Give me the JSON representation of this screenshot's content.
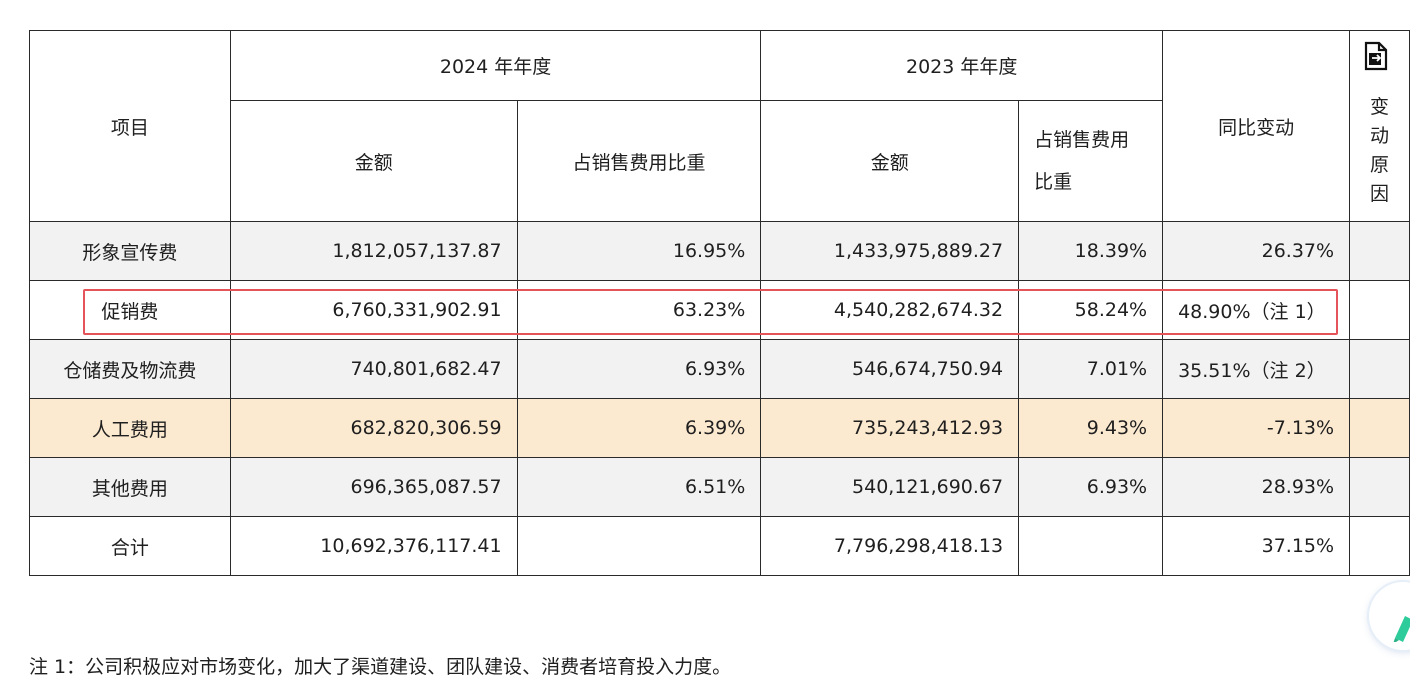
{
  "table": {
    "header": {
      "item": "项目",
      "year2024": "2024 年年度",
      "year2023": "2023 年年度",
      "yoy": "同比变动",
      "reason": "变动原因",
      "amount_2024": "金额",
      "ratio_2024": "占销售费用比重",
      "amount_2023": "金额",
      "ratio_2023": "占销售费用比重"
    },
    "rows": [
      {
        "item": "形象宣传费",
        "amount_2024": "1,812,057,137.87",
        "ratio_2024": "16.95%",
        "amount_2023": "1,433,975,889.27",
        "ratio_2023": "18.39%",
        "yoy": "26.37%",
        "reason": ""
      },
      {
        "item": "促销费",
        "amount_2024": "6,760,331,902.91",
        "ratio_2024": "63.23%",
        "amount_2023": "4,540,282,674.32",
        "ratio_2023": "58.24%",
        "yoy": "48.90%（注 1）",
        "reason": ""
      },
      {
        "item": "仓储费及物流费",
        "amount_2024": "740,801,682.47",
        "ratio_2024": "6.93%",
        "amount_2023": "546,674,750.94",
        "ratio_2023": "7.01%",
        "yoy": "35.51%（注 2）",
        "reason": ""
      },
      {
        "item": "人工费用",
        "amount_2024": "682,820,306.59",
        "ratio_2024": "6.39%",
        "amount_2023": "735,243,412.93",
        "ratio_2023": "9.43%",
        "yoy": "-7.13%",
        "reason": ""
      },
      {
        "item": "其他费用",
        "amount_2024": "696,365,087.57",
        "ratio_2024": "6.51%",
        "amount_2023": "540,121,690.67",
        "ratio_2023": "6.93%",
        "yoy": "28.93%",
        "reason": ""
      },
      {
        "item": "合计",
        "amount_2024": "10,692,376,117.41",
        "ratio_2024": "",
        "amount_2023": "7,796,298,418.13",
        "ratio_2023": "",
        "yoy": "37.15%",
        "reason": ""
      }
    ]
  },
  "note1": "注 1：公司积极应对市场变化，加大了渠道建设、团队建设、消费者培育投入力度。",
  "icons": {
    "reason_header_icon": "document-icon",
    "floating_button_icon": "pen-icon"
  },
  "colors": {
    "highlight_border": "#e5535b",
    "peach_row": "#fbe9d0",
    "gray_row": "#f2f2f2",
    "fab_accent": "#2ecc9a"
  }
}
